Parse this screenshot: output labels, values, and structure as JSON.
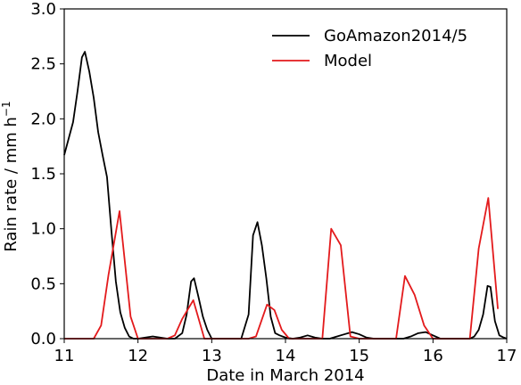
{
  "chart_data": {
    "type": "line",
    "xlabel": "Date in March 2014",
    "ylabel": "Rain rate / mm h",
    "ylabel_superscript": "−1",
    "xlim": [
      11,
      17
    ],
    "ylim": [
      0,
      3.0
    ],
    "xticks": [
      11,
      12,
      13,
      14,
      15,
      16,
      17
    ],
    "xtick_labels": [
      "11",
      "12",
      "13",
      "14",
      "15",
      "16",
      "17"
    ],
    "yticks": [
      0,
      0.5,
      1.0,
      1.5,
      2.0,
      2.5,
      3.0
    ],
    "ytick_labels": [
      "0.0",
      "0.5",
      "1.0",
      "1.5",
      "2.0",
      "2.5",
      "3.0"
    ],
    "grid": false,
    "legend_position": "top-right",
    "series": [
      {
        "name": "GoAmazon2014/5",
        "color": "#000000",
        "x": [
          11.0,
          11.06,
          11.12,
          11.18,
          11.24,
          11.28,
          11.34,
          11.4,
          11.46,
          11.52,
          11.58,
          11.64,
          11.7,
          11.76,
          11.82,
          11.88,
          11.94,
          12.0,
          12.1,
          12.2,
          12.3,
          12.4,
          12.5,
          12.6,
          12.66,
          12.72,
          12.76,
          12.82,
          12.88,
          12.94,
          13.0,
          13.1,
          13.2,
          13.3,
          13.4,
          13.5,
          13.56,
          13.62,
          13.68,
          13.74,
          13.8,
          13.86,
          13.92,
          14.0,
          14.1,
          14.2,
          14.3,
          14.4,
          14.5,
          14.6,
          14.7,
          14.8,
          14.9,
          15.0,
          15.1,
          15.2,
          15.3,
          15.4,
          15.5,
          15.6,
          15.7,
          15.8,
          15.9,
          16.0,
          16.1,
          16.2,
          16.3,
          16.4,
          16.5,
          16.56,
          16.62,
          16.68,
          16.74,
          16.78,
          16.84,
          16.9,
          16.96,
          17.0
        ],
        "y": [
          1.67,
          1.82,
          1.97,
          2.25,
          2.56,
          2.61,
          2.43,
          2.19,
          1.88,
          1.67,
          1.47,
          0.98,
          0.52,
          0.24,
          0.1,
          0.02,
          0.0,
          0.0,
          0.01,
          0.02,
          0.01,
          0.0,
          0.0,
          0.05,
          0.22,
          0.52,
          0.55,
          0.38,
          0.2,
          0.08,
          0.0,
          0.0,
          0.0,
          0.0,
          0.0,
          0.22,
          0.94,
          1.06,
          0.85,
          0.55,
          0.2,
          0.05,
          0.03,
          0.01,
          0.0,
          0.01,
          0.03,
          0.01,
          0.0,
          0.0,
          0.02,
          0.04,
          0.06,
          0.04,
          0.01,
          0.0,
          0.0,
          0.0,
          0.0,
          0.0,
          0.02,
          0.05,
          0.06,
          0.03,
          0.0,
          0.0,
          0.0,
          0.0,
          0.0,
          0.02,
          0.08,
          0.22,
          0.48,
          0.47,
          0.16,
          0.03,
          0.01,
          0.0
        ]
      },
      {
        "name": "Model",
        "color": "#e31a1c",
        "x": [
          11.0,
          11.1,
          11.2,
          11.3,
          11.4,
          11.5,
          11.6,
          11.75,
          11.9,
          12.0,
          12.1,
          12.2,
          12.3,
          12.4,
          12.5,
          12.6,
          12.75,
          12.9,
          13.0,
          13.1,
          13.2,
          13.3,
          13.4,
          13.5,
          13.6,
          13.75,
          13.85,
          13.95,
          14.05,
          14.15,
          14.3,
          14.5,
          14.62,
          14.75,
          14.88,
          15.0,
          15.1,
          15.2,
          15.3,
          15.4,
          15.5,
          15.62,
          15.75,
          15.88,
          16.0,
          16.1,
          16.2,
          16.3,
          16.4,
          16.5,
          16.62,
          16.75,
          16.88
        ],
        "y": [
          0.0,
          0.0,
          0.0,
          0.0,
          0.0,
          0.12,
          0.58,
          1.16,
          0.2,
          0.0,
          0.0,
          0.0,
          0.0,
          0.0,
          0.03,
          0.18,
          0.35,
          0.0,
          0.0,
          0.0,
          0.0,
          0.0,
          0.0,
          0.0,
          0.02,
          0.31,
          0.26,
          0.08,
          0.0,
          0.0,
          0.0,
          0.0,
          1.0,
          0.85,
          0.02,
          0.0,
          0.0,
          0.0,
          0.0,
          0.0,
          0.0,
          0.57,
          0.4,
          0.12,
          0.0,
          0.0,
          0.0,
          0.0,
          0.0,
          0.0,
          0.82,
          1.28,
          0.27
        ]
      }
    ]
  }
}
